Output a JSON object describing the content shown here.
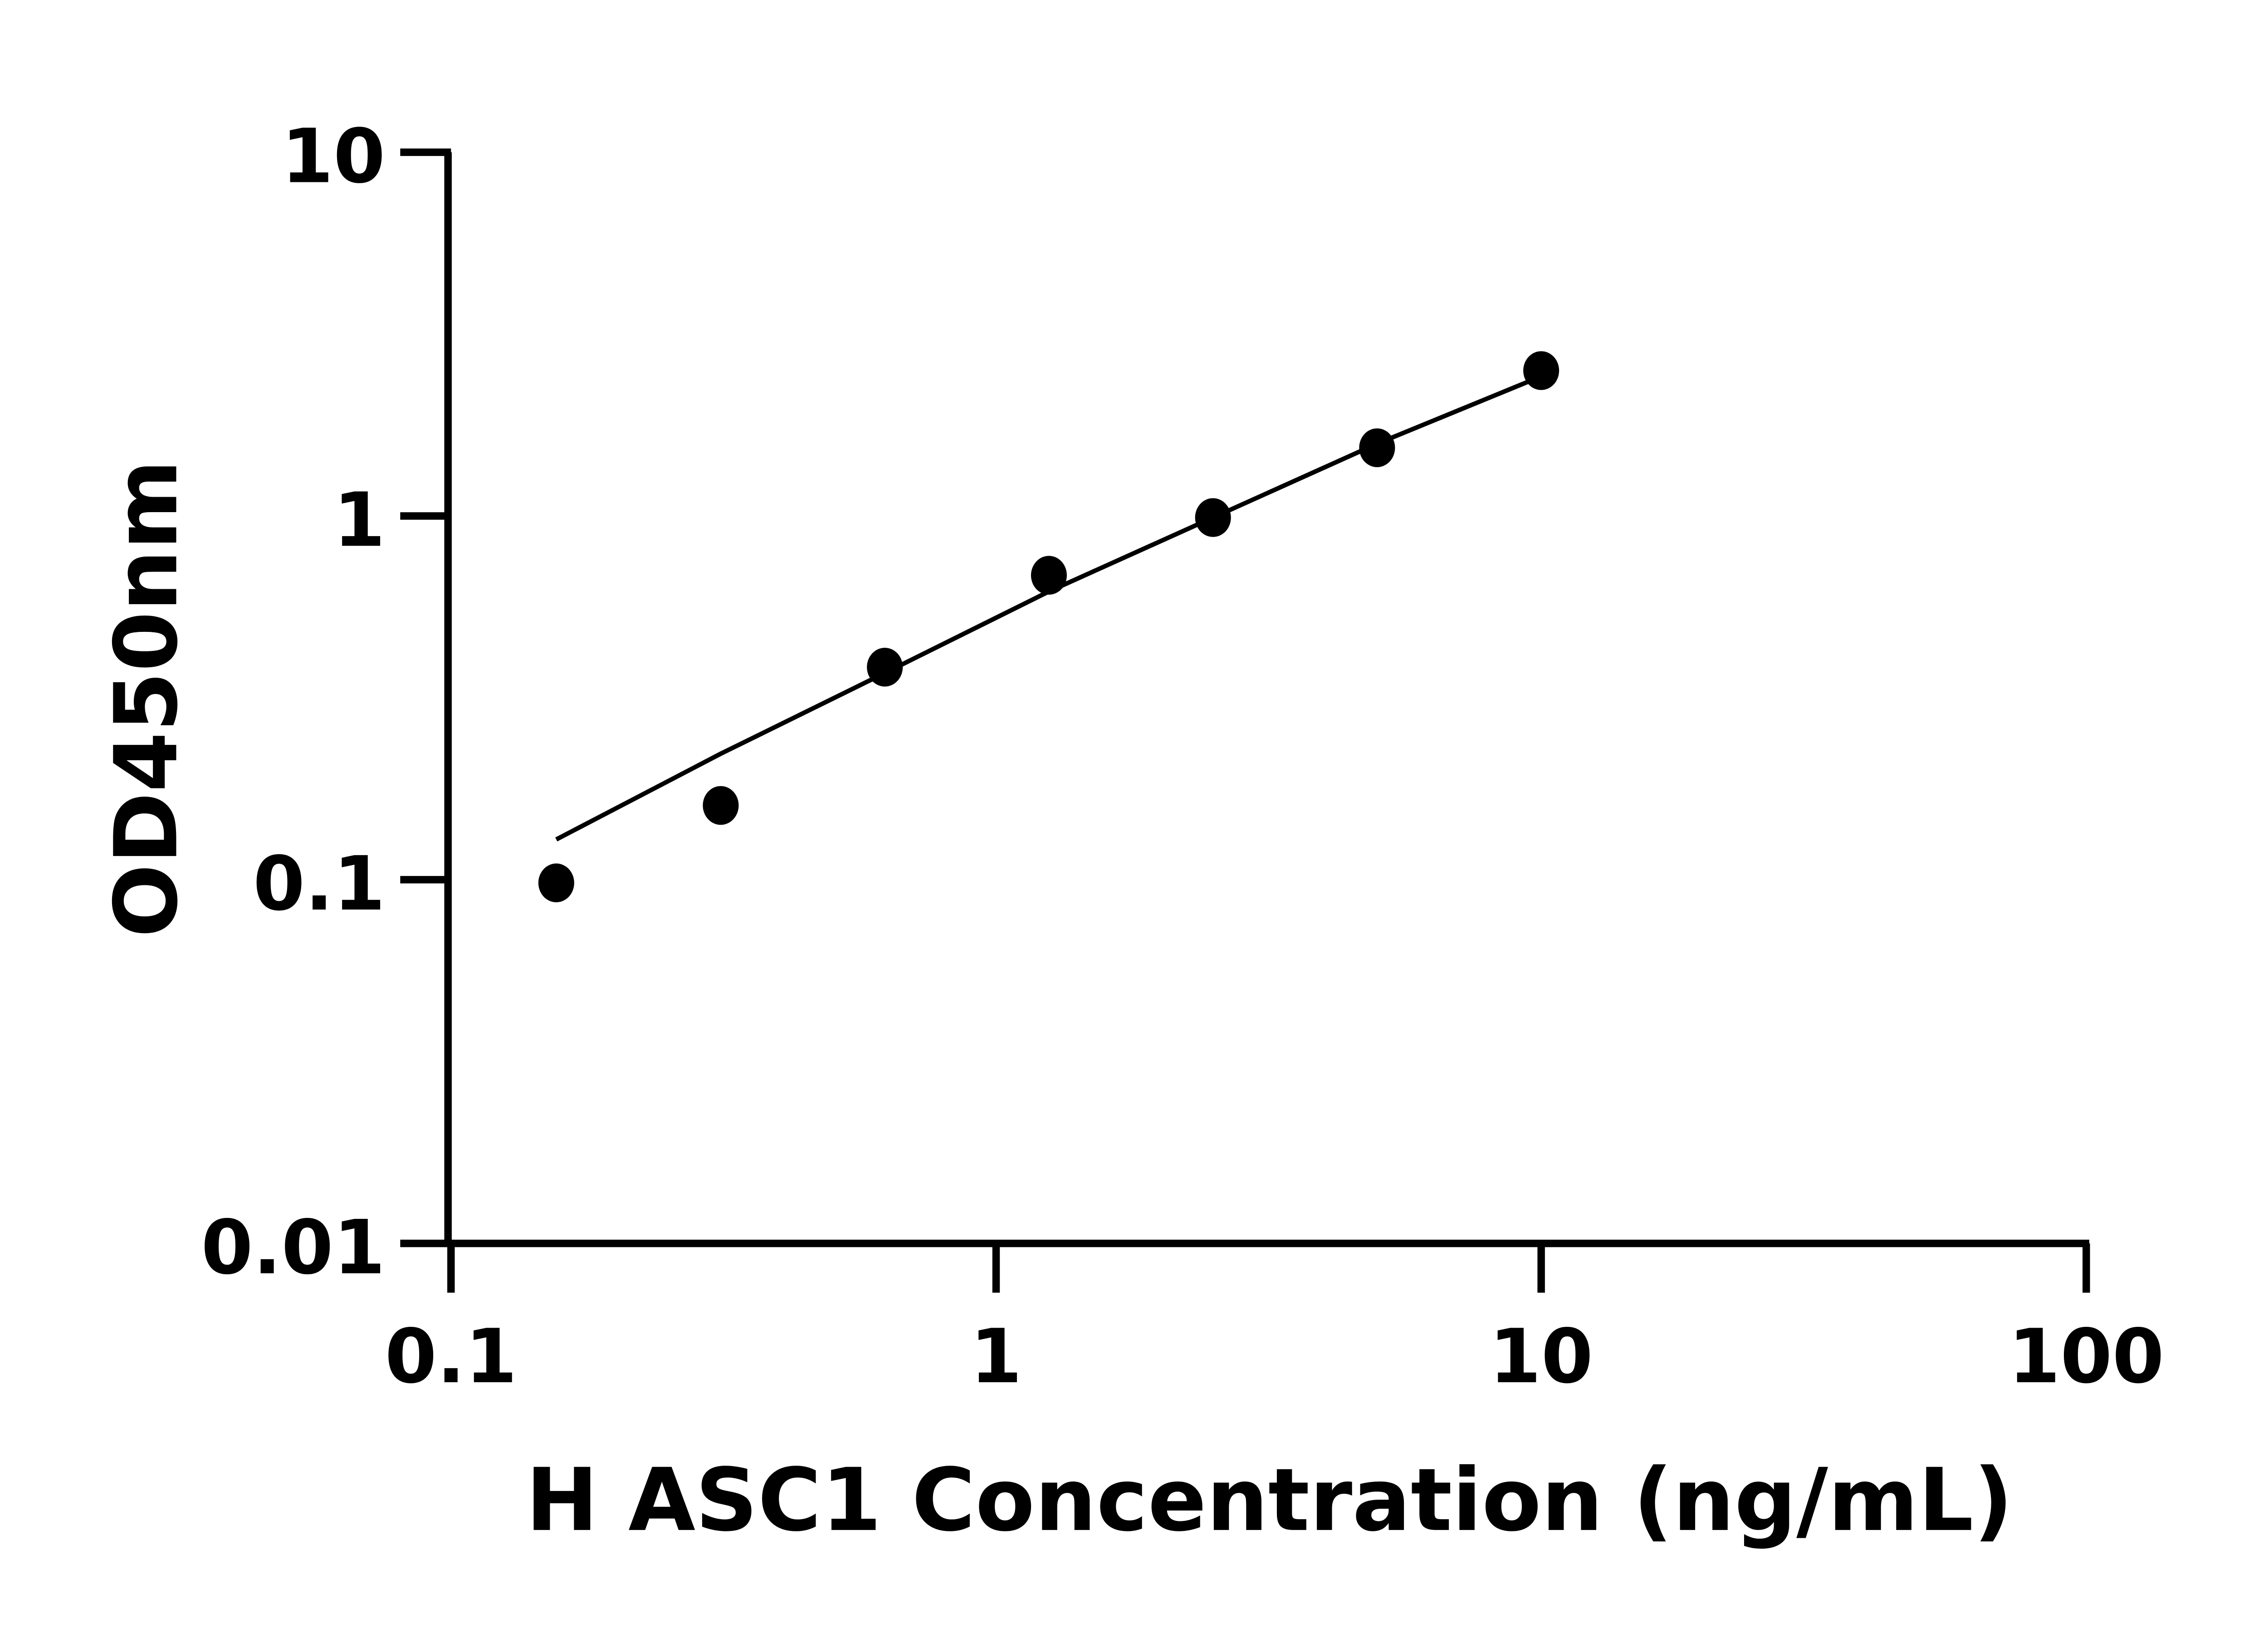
{
  "chart_data": {
    "type": "scatter",
    "title": "",
    "xlabel": "H ASC1 Concentration (ng/mL)",
    "ylabel": "OD450nm",
    "xscale": "log",
    "yscale": "log",
    "xlim": [
      0.1,
      100
    ],
    "ylim": [
      0.01,
      10
    ],
    "xticks": [
      0.1,
      1,
      10,
      100
    ],
    "xtick_labels": [
      "0.1",
      "1",
      "10",
      "100"
    ],
    "yticks": [
      0.01,
      0.1,
      1,
      10
    ],
    "ytick_labels": [
      "0.01",
      "0.1",
      "1",
      "10"
    ],
    "grid": false,
    "marker_color": "#000000",
    "points": {
      "x": [
        0.156,
        0.3125,
        0.625,
        1.25,
        2.5,
        5,
        10
      ],
      "y": [
        0.098,
        0.16,
        0.384,
        0.687,
        0.99,
        1.54,
        2.51
      ]
    },
    "fit_curve": {
      "x": [
        0.156,
        0.3125,
        0.625,
        1.25,
        2.5,
        5,
        10
      ],
      "y": [
        0.129,
        0.222,
        0.37,
        0.62,
        0.99,
        1.58,
        2.42
      ]
    }
  }
}
